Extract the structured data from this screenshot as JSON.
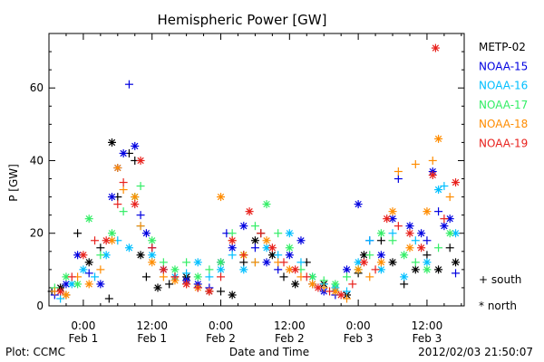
{
  "chart_data": {
    "type": "scatter",
    "title": "Hemispheric Power [GW]",
    "ylabel": "P [GW]",
    "xlabel": "Date and Time",
    "ylim": [
      0,
      75
    ],
    "xlim_hours": [
      -6,
      66.5
    ],
    "y_ticks": [
      0,
      20,
      40,
      60
    ],
    "x_ticks": [
      {
        "hour": 0,
        "time": "0:00",
        "date": "Feb 1"
      },
      {
        "hour": 12,
        "time": "12:00",
        "date": "Feb 1"
      },
      {
        "hour": 24,
        "time": "0:00",
        "date": "Feb 2"
      },
      {
        "hour": 36,
        "time": "12:00",
        "date": "Feb 2"
      },
      {
        "hour": 48,
        "time": "0:00",
        "date": "Feb 3"
      },
      {
        "hour": 60,
        "time": "12:00",
        "date": "Feb 3"
      }
    ],
    "grid": false,
    "legend_position": "right",
    "markers": {
      "plus": "+ south",
      "star": "* north"
    },
    "series": [
      {
        "name": "METP-02",
        "color": "#000000",
        "points": [
          [
            -5.5,
            4,
            "plus"
          ],
          [
            -4,
            5,
            "star"
          ],
          [
            -3,
            3,
            "plus"
          ],
          [
            -1,
            20,
            "plus"
          ],
          [
            1,
            12,
            "star"
          ],
          [
            3,
            16,
            "plus"
          ],
          [
            4.5,
            2,
            "plus"
          ],
          [
            5,
            45,
            "star"
          ],
          [
            6,
            30,
            "plus"
          ],
          [
            8,
            42,
            "plus"
          ],
          [
            9,
            40,
            "plus"
          ],
          [
            10,
            14,
            "star"
          ],
          [
            11,
            8,
            "plus"
          ],
          [
            13,
            5,
            "star"
          ],
          [
            15,
            6,
            "plus"
          ],
          [
            18,
            8,
            "star"
          ],
          [
            20,
            5,
            "plus"
          ],
          [
            22,
            4,
            "star"
          ],
          [
            24,
            4,
            "plus"
          ],
          [
            26,
            3,
            "star"
          ],
          [
            28,
            12,
            "plus"
          ],
          [
            30,
            18,
            "star"
          ],
          [
            31,
            20,
            "plus"
          ],
          [
            33,
            14,
            "star"
          ],
          [
            35,
            8,
            "plus"
          ],
          [
            37,
            6,
            "star"
          ],
          [
            39,
            12,
            "plus"
          ],
          [
            42,
            6,
            "star"
          ],
          [
            44,
            4,
            "plus"
          ],
          [
            46,
            3,
            "star"
          ],
          [
            48,
            9,
            "plus"
          ],
          [
            49,
            14,
            "star"
          ],
          [
            52,
            18,
            "plus"
          ],
          [
            54,
            12,
            "star"
          ],
          [
            56,
            6,
            "plus"
          ],
          [
            58,
            10,
            "star"
          ],
          [
            60,
            14,
            "plus"
          ],
          [
            62,
            10,
            "star"
          ],
          [
            64,
            16,
            "plus"
          ],
          [
            65,
            12,
            "star"
          ]
        ]
      },
      {
        "name": "NOAA-15",
        "color": "#0000e0",
        "points": [
          [
            -5,
            3,
            "plus"
          ],
          [
            -3,
            6,
            "star"
          ],
          [
            -1,
            14,
            "star"
          ],
          [
            1,
            9,
            "plus"
          ],
          [
            3,
            6,
            "star"
          ],
          [
            5,
            30,
            "star"
          ],
          [
            6,
            38,
            "star"
          ],
          [
            7,
            42,
            "star"
          ],
          [
            8,
            61,
            "plus"
          ],
          [
            9,
            44,
            "star"
          ],
          [
            10,
            25,
            "plus"
          ],
          [
            11,
            20,
            "star"
          ],
          [
            12,
            16,
            "plus"
          ],
          [
            14,
            10,
            "star"
          ],
          [
            16,
            8,
            "plus"
          ],
          [
            18,
            7,
            "star"
          ],
          [
            20,
            6,
            "star"
          ],
          [
            22,
            5,
            "plus"
          ],
          [
            24,
            12,
            "star"
          ],
          [
            25,
            20,
            "plus"
          ],
          [
            26,
            16,
            "star"
          ],
          [
            28,
            22,
            "star"
          ],
          [
            30,
            16,
            "plus"
          ],
          [
            32,
            12,
            "star"
          ],
          [
            34,
            10,
            "plus"
          ],
          [
            36,
            14,
            "star"
          ],
          [
            38,
            18,
            "star"
          ],
          [
            40,
            6,
            "plus"
          ],
          [
            42,
            4,
            "star"
          ],
          [
            44,
            3,
            "plus"
          ],
          [
            46,
            10,
            "star"
          ],
          [
            48,
            28,
            "star"
          ],
          [
            50,
            18,
            "plus"
          ],
          [
            52,
            14,
            "star"
          ],
          [
            54,
            24,
            "star"
          ],
          [
            55,
            35,
            "plus"
          ],
          [
            57,
            22,
            "star"
          ],
          [
            59,
            20,
            "star"
          ],
          [
            60,
            18,
            "plus"
          ],
          [
            61,
            37,
            "star"
          ],
          [
            62,
            26,
            "plus"
          ],
          [
            63,
            22,
            "star"
          ],
          [
            64,
            24,
            "star"
          ],
          [
            65,
            9,
            "plus"
          ]
        ]
      },
      {
        "name": "NOAA-16",
        "color": "#00bfff",
        "points": [
          [
            -4,
            2,
            "plus"
          ],
          [
            -2,
            6,
            "star"
          ],
          [
            0,
            10,
            "star"
          ],
          [
            2,
            8,
            "plus"
          ],
          [
            4,
            14,
            "star"
          ],
          [
            6,
            18,
            "plus"
          ],
          [
            8,
            16,
            "star"
          ],
          [
            10,
            22,
            "plus"
          ],
          [
            12,
            14,
            "star"
          ],
          [
            14,
            10,
            "plus"
          ],
          [
            16,
            8,
            "star"
          ],
          [
            18,
            9,
            "plus"
          ],
          [
            20,
            12,
            "star"
          ],
          [
            22,
            8,
            "plus"
          ],
          [
            24,
            10,
            "star"
          ],
          [
            26,
            14,
            "plus"
          ],
          [
            28,
            10,
            "star"
          ],
          [
            30,
            12,
            "plus"
          ],
          [
            32,
            16,
            "star"
          ],
          [
            34,
            14,
            "plus"
          ],
          [
            36,
            20,
            "star"
          ],
          [
            38,
            12,
            "plus"
          ],
          [
            40,
            8,
            "star"
          ],
          [
            42,
            6,
            "plus"
          ],
          [
            44,
            5,
            "star"
          ],
          [
            46,
            4,
            "plus"
          ],
          [
            48,
            12,
            "star"
          ],
          [
            50,
            18,
            "plus"
          ],
          [
            52,
            10,
            "star"
          ],
          [
            54,
            20,
            "plus"
          ],
          [
            56,
            8,
            "star"
          ],
          [
            58,
            18,
            "plus"
          ],
          [
            60,
            12,
            "star"
          ],
          [
            62,
            32,
            "star"
          ],
          [
            63,
            33,
            "plus"
          ],
          [
            65,
            20,
            "star"
          ]
        ]
      },
      {
        "name": "NOAA-17",
        "color": "#33ee66",
        "points": [
          [
            -5,
            5,
            "plus"
          ],
          [
            -3,
            8,
            "star"
          ],
          [
            -1,
            6,
            "star"
          ],
          [
            1,
            24,
            "star"
          ],
          [
            3,
            14,
            "plus"
          ],
          [
            5,
            20,
            "star"
          ],
          [
            7,
            26,
            "plus"
          ],
          [
            9,
            30,
            "star"
          ],
          [
            10,
            33,
            "plus"
          ],
          [
            12,
            18,
            "star"
          ],
          [
            14,
            12,
            "plus"
          ],
          [
            16,
            10,
            "star"
          ],
          [
            18,
            12,
            "plus"
          ],
          [
            20,
            8,
            "star"
          ],
          [
            22,
            10,
            "plus"
          ],
          [
            24,
            12,
            "star"
          ],
          [
            26,
            20,
            "plus"
          ],
          [
            28,
            14,
            "star"
          ],
          [
            30,
            22,
            "plus"
          ],
          [
            32,
            28,
            "star"
          ],
          [
            34,
            20,
            "plus"
          ],
          [
            36,
            16,
            "star"
          ],
          [
            38,
            10,
            "plus"
          ],
          [
            40,
            8,
            "star"
          ],
          [
            42,
            7,
            "plus"
          ],
          [
            44,
            6,
            "star"
          ],
          [
            46,
            8,
            "plus"
          ],
          [
            48,
            10,
            "star"
          ],
          [
            50,
            14,
            "plus"
          ],
          [
            52,
            20,
            "star"
          ],
          [
            54,
            18,
            "plus"
          ],
          [
            56,
            14,
            "star"
          ],
          [
            58,
            12,
            "plus"
          ],
          [
            60,
            10,
            "star"
          ],
          [
            62,
            16,
            "plus"
          ],
          [
            64,
            20,
            "star"
          ]
        ]
      },
      {
        "name": "NOAA-18",
        "color": "#ff8c00",
        "points": [
          [
            -5,
            4,
            "plus"
          ],
          [
            -3,
            3,
            "star"
          ],
          [
            -1,
            8,
            "plus"
          ],
          [
            1,
            6,
            "star"
          ],
          [
            3,
            10,
            "plus"
          ],
          [
            5,
            18,
            "star"
          ],
          [
            6,
            38,
            "star"
          ],
          [
            7,
            32,
            "plus"
          ],
          [
            9,
            30,
            "star"
          ],
          [
            10,
            22,
            "plus"
          ],
          [
            12,
            12,
            "star"
          ],
          [
            14,
            8,
            "plus"
          ],
          [
            16,
            7,
            "star"
          ],
          [
            18,
            6,
            "plus"
          ],
          [
            20,
            5,
            "star"
          ],
          [
            22,
            4,
            "plus"
          ],
          [
            24,
            30,
            "star"
          ],
          [
            26,
            18,
            "plus"
          ],
          [
            28,
            14,
            "star"
          ],
          [
            30,
            12,
            "plus"
          ],
          [
            32,
            18,
            "star"
          ],
          [
            34,
            12,
            "plus"
          ],
          [
            36,
            10,
            "star"
          ],
          [
            38,
            8,
            "plus"
          ],
          [
            40,
            6,
            "star"
          ],
          [
            42,
            5,
            "plus"
          ],
          [
            44,
            4,
            "star"
          ],
          [
            46,
            2,
            "plus"
          ],
          [
            48,
            10,
            "star"
          ],
          [
            50,
            8,
            "plus"
          ],
          [
            52,
            12,
            "star"
          ],
          [
            54,
            26,
            "star"
          ],
          [
            55,
            37,
            "plus"
          ],
          [
            57,
            16,
            "star"
          ],
          [
            58,
            39,
            "plus"
          ],
          [
            60,
            26,
            "star"
          ],
          [
            61,
            40,
            "plus"
          ],
          [
            62,
            46,
            "star"
          ],
          [
            64,
            30,
            "plus"
          ]
        ]
      },
      {
        "name": "NOAA-19",
        "color": "#e8211c",
        "points": [
          [
            -4,
            4,
            "star"
          ],
          [
            -2,
            8,
            "plus"
          ],
          [
            0,
            14,
            "star"
          ],
          [
            2,
            18,
            "plus"
          ],
          [
            4,
            18,
            "star"
          ],
          [
            6,
            28,
            "plus"
          ],
          [
            7,
            34,
            "plus"
          ],
          [
            9,
            28,
            "star"
          ],
          [
            10,
            40,
            "star"
          ],
          [
            12,
            16,
            "plus"
          ],
          [
            14,
            10,
            "star"
          ],
          [
            16,
            8,
            "plus"
          ],
          [
            18,
            6,
            "star"
          ],
          [
            20,
            5,
            "plus"
          ],
          [
            22,
            4,
            "star"
          ],
          [
            24,
            8,
            "plus"
          ],
          [
            26,
            18,
            "star"
          ],
          [
            28,
            14,
            "plus"
          ],
          [
            29,
            26,
            "star"
          ],
          [
            31,
            20,
            "plus"
          ],
          [
            33,
            16,
            "star"
          ],
          [
            35,
            12,
            "plus"
          ],
          [
            37,
            10,
            "star"
          ],
          [
            39,
            8,
            "plus"
          ],
          [
            41,
            5,
            "star"
          ],
          [
            43,
            4,
            "plus"
          ],
          [
            45,
            3,
            "star"
          ],
          [
            47,
            6,
            "plus"
          ],
          [
            49,
            12,
            "star"
          ],
          [
            51,
            10,
            "plus"
          ],
          [
            53,
            24,
            "star"
          ],
          [
            55,
            22,
            "plus"
          ],
          [
            57,
            20,
            "star"
          ],
          [
            59,
            16,
            "star"
          ],
          [
            61,
            36,
            "star"
          ],
          [
            61.5,
            71,
            "star"
          ],
          [
            63,
            24,
            "plus"
          ],
          [
            65,
            34,
            "star"
          ]
        ]
      }
    ]
  },
  "footer": {
    "left": "Plot: CCMC",
    "right": "2012/02/03 21:50:07"
  }
}
